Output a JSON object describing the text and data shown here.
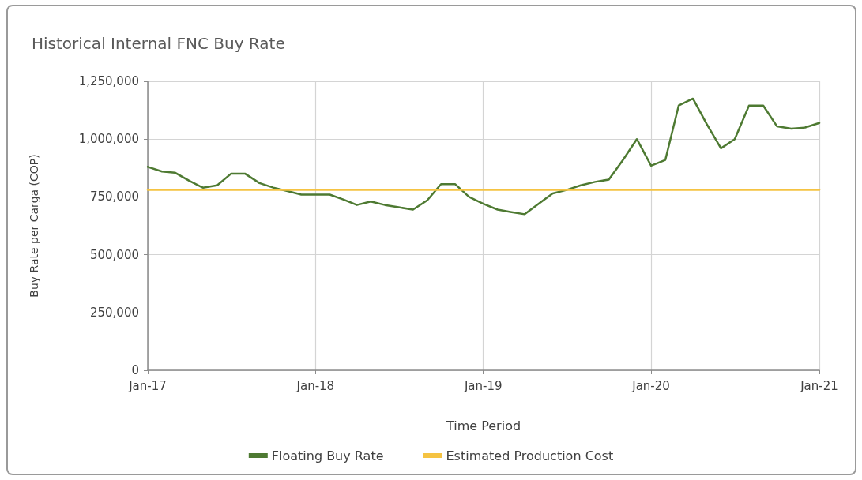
{
  "chart_data": {
    "type": "line",
    "title": "Historical Internal FNC Buy Rate",
    "xlabel": "Time Period",
    "ylabel": "Buy Rate per Carga (COP)",
    "x": [
      "2017-01",
      "2017-02",
      "2017-03",
      "2017-04",
      "2017-05",
      "2017-06",
      "2017-07",
      "2017-08",
      "2017-09",
      "2017-10",
      "2017-11",
      "2017-12",
      "2018-01",
      "2018-02",
      "2018-03",
      "2018-04",
      "2018-05",
      "2018-06",
      "2018-07",
      "2018-08",
      "2018-09",
      "2018-10",
      "2018-11",
      "2018-12",
      "2019-01",
      "2019-02",
      "2019-03",
      "2019-04",
      "2019-05",
      "2019-06",
      "2019-07",
      "2019-08",
      "2019-09",
      "2019-10",
      "2019-11",
      "2019-12",
      "2020-01",
      "2020-02",
      "2020-03",
      "2020-04",
      "2020-05",
      "2020-06",
      "2020-07",
      "2020-08",
      "2020-09",
      "2020-10",
      "2020-11",
      "2020-12",
      "2021-01"
    ],
    "series": [
      {
        "name": "Floating Buy Rate",
        "color": "#4e7a32",
        "values": [
          880000,
          860000,
          855000,
          820000,
          790000,
          800000,
          850000,
          850000,
          810000,
          790000,
          775000,
          760000,
          760000,
          760000,
          740000,
          715000,
          730000,
          715000,
          705000,
          695000,
          735000,
          805000,
          805000,
          750000,
          720000,
          695000,
          685000,
          675000,
          720000,
          765000,
          780000,
          800000,
          815000,
          825000,
          910000,
          1000000,
          885000,
          910000,
          1145000,
          1175000,
          1065000,
          960000,
          1000000,
          1145000,
          1145000,
          1055000,
          1045000,
          1050000,
          1070000
        ]
      },
      {
        "name": "Estimated Production Cost",
        "color": "#f5c342",
        "x": [
          "2017-01",
          "2021-01"
        ],
        "values": [
          780000,
          780000
        ]
      }
    ],
    "xlim": [
      "2017-01",
      "2021-01"
    ],
    "xticks": [
      {
        "value": "2017-01",
        "label": "Jan-17"
      },
      {
        "value": "2018-01",
        "label": "Jan-18"
      },
      {
        "value": "2019-01",
        "label": "Jan-19"
      },
      {
        "value": "2020-01",
        "label": "Jan-20"
      },
      {
        "value": "2021-01",
        "label": "Jan-21"
      }
    ],
    "ylim": [
      0,
      1250000
    ],
    "yticks": [
      0,
      {
        "value": 250000,
        "label": "250,000"
      },
      {
        "value": 500000,
        "label": "500,000"
      },
      {
        "value": 750000,
        "label": "750,000"
      },
      {
        "value": 1000000,
        "label": "1,000,000"
      },
      {
        "value": 1250000,
        "label": "1,250,000"
      }
    ],
    "grid": true,
    "legend": "bottom",
    "marker": "none",
    "line_style": "solid"
  }
}
